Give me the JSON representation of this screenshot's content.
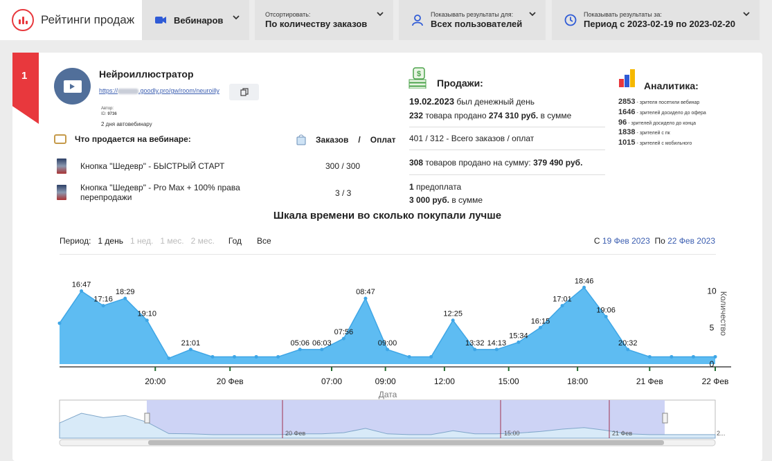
{
  "app": {
    "title": "Рейтинги продаж"
  },
  "filters": {
    "type": {
      "value": "Вебинаров"
    },
    "sort": {
      "label": "Отсортировать:",
      "value": "По количеству заказов"
    },
    "audience": {
      "label": "Показывать результаты для:",
      "value": "Всех пользователей"
    },
    "period": {
      "label": "Показывать результаты за:",
      "value": "Период с 2023-02-19 по 2023-02-20"
    }
  },
  "card": {
    "rank": "1",
    "title": "Нейроиллюстратор",
    "link_prefix": "https://",
    "link_suffix": ".goodly.pro/gw/room/neuroilly",
    "author_label": "Автор:",
    "id_label": "ID:",
    "id_value": "9736",
    "days": "2 дня автовебинару",
    "sells_title": "Что продается на вебинаре:",
    "orders_label": "Заказов",
    "orders_sep": "/",
    "payments_label": "Оплат",
    "products": [
      {
        "name": "Кнопка \"Шедевр\" - БЫСТРЫЙ СТАРТ",
        "counts": "300 / 300"
      },
      {
        "name": "Кнопка \"Шедевр\" - Pro Max + 100% права перепродажи",
        "counts": "3 / 3"
      }
    ],
    "sales": {
      "title": "Продажи:",
      "best_date": "19.02.2023",
      "best_text": "был денежный день",
      "sold1_count": "232",
      "sold1_text": "товара продано",
      "sold1_sum": "274 310 руб.",
      "sold1_tail": "в сумме",
      "total_orders": "401 / 312 - Всего заказов / оплат",
      "sold2_count": "308",
      "sold2_text": "товаров продано на сумму:",
      "sold2_sum": "379 490 руб.",
      "prepay_count": "1",
      "prepay_text": "предоплата",
      "prepay_sum": "3 000 руб.",
      "prepay_tail": "в сумме"
    },
    "analytics": {
      "title": "Аналитика:",
      "items": [
        {
          "value": "2853",
          "text": "- зрителя посетили вебинар"
        },
        {
          "value": "1646",
          "text": "- зрителей досидело до офера"
        },
        {
          "value": "96",
          "text": "- зрителей досидело до конца"
        },
        {
          "value": "1838",
          "text": "- зрителей с пк"
        },
        {
          "value": "1015",
          "text": "- зрителей с мобильного"
        }
      ]
    }
  },
  "timeline": {
    "title": "Шкала времени во сколько покупали лучше",
    "period_label": "Период:",
    "options": [
      {
        "label": "1 день",
        "state": "active"
      },
      {
        "label": "1 нед.",
        "state": "disabled"
      },
      {
        "label": "1 мес.",
        "state": "disabled"
      },
      {
        "label": "2 мес.",
        "state": "disabled"
      },
      {
        "label": "Год",
        "state": "normal"
      },
      {
        "label": "Все",
        "state": "normal"
      }
    ],
    "from_label": "С",
    "from_date": "19 Фев 2023",
    "to_label": "По",
    "to_date": "22 Фев 2023"
  },
  "chart_data": {
    "type": "area",
    "xlabel": "Дата",
    "ylabel": "Количество",
    "ylim": [
      0,
      11
    ],
    "y_ticks": [
      0,
      5,
      10
    ],
    "x_ticks": [
      "20:00",
      "20 Фев",
      "07:00",
      "09:00",
      "12:00",
      "15:00",
      "18:00",
      "21 Фев",
      "22 Фев"
    ],
    "series": [
      {
        "values": [
          5.6,
          10,
          8,
          9,
          6,
          0.8,
          2,
          1,
          1,
          1,
          1,
          2,
          2,
          3.5,
          9,
          2,
          1,
          1,
          6,
          2,
          2,
          3,
          5,
          8,
          10.5,
          6.5,
          2,
          1,
          1,
          1,
          1
        ],
        "labels": [
          "",
          "16:47",
          "17:16",
          "18:29",
          "19:10",
          "",
          "21:01",
          "",
          "",
          "",
          "",
          "05:06",
          "06:03",
          "07:56",
          "08:47",
          "09:00",
          "",
          "",
          "12:25",
          "13:32",
          "14:13",
          "15:34",
          "16:15",
          "17:01",
          "18:46",
          "19:06",
          "20:32",
          "",
          "",
          "",
          ""
        ]
      }
    ],
    "colors": {
      "fill": "#5ebcf2",
      "line": "#3ea6e6",
      "tick": "#1e6b2d"
    },
    "navigator": {
      "labels": [
        "20 Фев",
        "15:00",
        "21 Фев",
        "2..."
      ]
    }
  }
}
